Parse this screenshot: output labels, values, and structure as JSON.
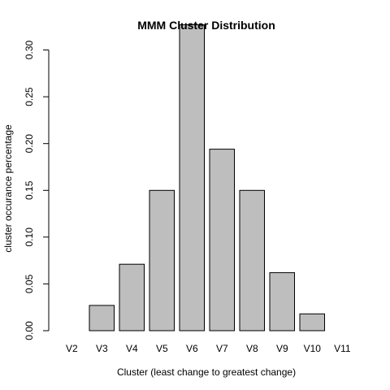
{
  "chart_data": {
    "type": "bar",
    "title": "MMM Cluster Distribution",
    "xlabel": "Cluster (least change to greatest change)",
    "ylabel": "cluster occurance percentage",
    "categories": [
      "V2",
      "V3",
      "V4",
      "V5",
      "V6",
      "V7",
      "V8",
      "V9",
      "V10",
      "V11"
    ],
    "values": [
      0.0,
      0.027,
      0.071,
      0.15,
      0.327,
      0.194,
      0.15,
      0.062,
      0.018,
      0.0
    ],
    "ylim": [
      0,
      0.33
    ],
    "yticks": [
      "0.00",
      "0.05",
      "0.10",
      "0.15",
      "0.20",
      "0.25",
      "0.30"
    ],
    "bar_color": "#bebebe",
    "grid": false,
    "legend": "none"
  }
}
